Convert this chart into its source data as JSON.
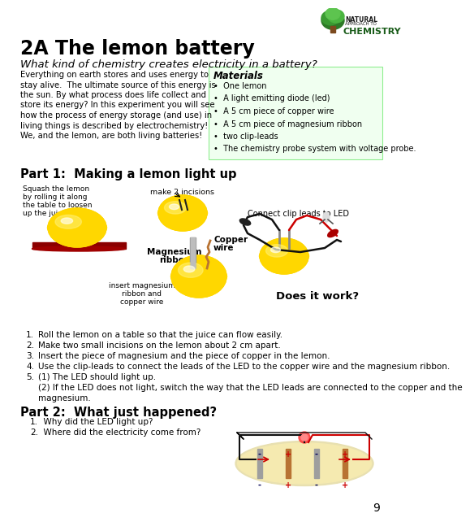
{
  "title": "2A The lemon battery",
  "subtitle": "What kind of chemistry creates electricity in a battery?",
  "body_text_lines": [
    "Everything on earth stores and uses energy to",
    "stay alive.  The ultimate source of this energy is",
    "the sun. By what process does life collect and",
    "store its energy? In this experiment you will see",
    "how the process of energy storage (and use) in",
    "living things is described by electrochemistry!",
    "We, and the lemon, are both living batteries!"
  ],
  "materials_title": "Materials",
  "materials": [
    "One lemon",
    "A light emitting diode (led)",
    "A 5 cm piece of copper wire",
    "A 5 cm piece of magnesium ribbon",
    "two clip-leads",
    "The chemistry probe system with voltage probe."
  ],
  "part1_title": "Part 1:  Making a lemon light up",
  "steps": [
    "Roll the lemon on a table so that the juice can flow easily.",
    "Make two small incisions on the lemon about 2 cm apart.",
    "Insert the piece of magnesium and the piece of copper in the lemon.",
    "Use the clip-leads to connect the leads of the LED to the copper wire and the magnesium ribbon.",
    "(1) The LED should light up.",
    "(2) If the LED does not light, switch the way that the LED leads are connected to the copper and the",
    "magnesium."
  ],
  "part2_title": "Part 2:  What just happened?",
  "part2_steps": [
    "Why did the LED light up?",
    "Where did the electricity come from?"
  ],
  "lemon_color": "#FFD700",
  "lemon_hi": "#FFF176",
  "lemon_shadow": "#E6A817",
  "lemon_dark": "#C8860A",
  "bg_color": "#FFFFFF",
  "materials_bg": "#F0FFF0",
  "materials_border": "#90EE90",
  "table_color": "#8B0000",
  "page_number": "9"
}
